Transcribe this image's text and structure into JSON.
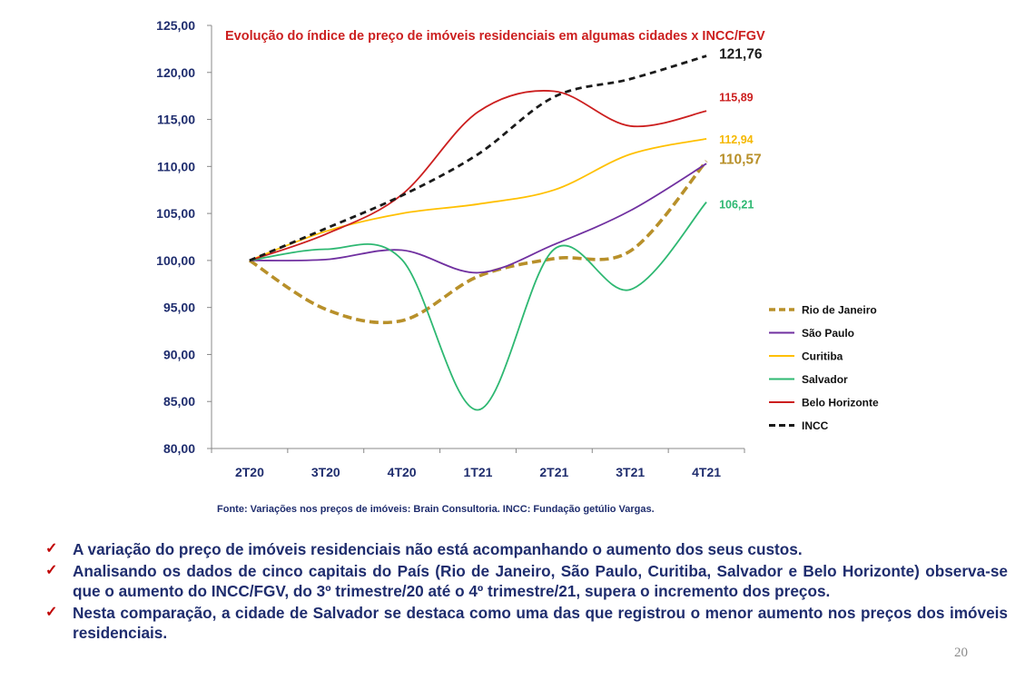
{
  "chart_data": {
    "type": "line",
    "title": "Evolução do índice de preço de imóveis residenciais em algumas cidades x INCC/FGV",
    "categories": [
      "2T20",
      "3T20",
      "4T20",
      "1T21",
      "2T21",
      "3T21",
      "4T21"
    ],
    "ylim": [
      80,
      125
    ],
    "yticks": [
      "80,00",
      "85,00",
      "90,00",
      "95,00",
      "100,00",
      "105,00",
      "110,00",
      "115,00",
      "120,00",
      "125,00"
    ],
    "series": [
      {
        "name": "Rio de Janeiro",
        "color": "#b8902a",
        "dashed": true,
        "values": [
          100,
          94.8,
          93.6,
          98.3,
          100.2,
          101.0,
          110.57
        ]
      },
      {
        "name": "São Paulo",
        "color": "#7030a0",
        "dashed": false,
        "values": [
          100,
          100.1,
          101.1,
          98.7,
          101.7,
          105.3,
          110.3
        ]
      },
      {
        "name": "Curitiba",
        "color": "#ffc000",
        "dashed": false,
        "values": [
          100,
          103.1,
          105.0,
          106.0,
          107.5,
          111.3,
          112.94
        ]
      },
      {
        "name": "Salvador",
        "color": "#2eb872",
        "dashed": false,
        "values": [
          100,
          101.2,
          100.1,
          84.1,
          101.2,
          96.9,
          106.21
        ]
      },
      {
        "name": "Belo Horizonte",
        "color": "#cc1f1f",
        "dashed": false,
        "values": [
          100,
          102.8,
          107.0,
          115.8,
          118.0,
          114.3,
          115.89
        ]
      },
      {
        "name": "INCC",
        "color": "#1a1a1a",
        "dashed": true,
        "values": [
          100,
          103.4,
          106.9,
          111.3,
          117.4,
          119.3,
          121.76
        ]
      }
    ],
    "annotations": [
      {
        "text": "121,76",
        "value": 121.76,
        "color": "#1a1a1a",
        "size": 15.5
      },
      {
        "text": "115,89",
        "value": 115.89,
        "color": "#cc1f1f",
        "size": 12.5
      },
      {
        "text": "112,94",
        "value": 112.94,
        "color": "#f5b800",
        "size": 12.5
      },
      {
        "text": "110,57",
        "value": 110.57,
        "color": "#b8902a",
        "size": 15.5
      },
      {
        "text": "106,21",
        "value": 106.21,
        "color": "#2eb872",
        "size": 12.5
      }
    ],
    "legend_position": "right"
  },
  "source_text": "Fonte: Variações nos preços de imóveis: Brain Consultoria. INCC: Fundação getúlio Vargas.",
  "bullets": [
    "A variação do preço de imóveis residenciais não está acompanhando o aumento dos seus custos.",
    "Analisando os dados de cinco capitais do País (Rio de Janeiro, São Paulo, Curitiba, Salvador e Belo Horizonte) observa-se que o aumento do INCC/FGV,  do 3º trimestre/20 até o 4º trimestre/21, supera o incremento dos preços.",
    "Nesta comparação, a cidade de Salvador se destaca como uma das que registrou o menor aumento nos preços dos imóveis residenciais."
  ],
  "check_glyph": "✓",
  "page_number": "20",
  "colors": {
    "text_navy": "#1f2d6e",
    "title_red": "#cc1f1f",
    "check_red": "#c00000"
  }
}
